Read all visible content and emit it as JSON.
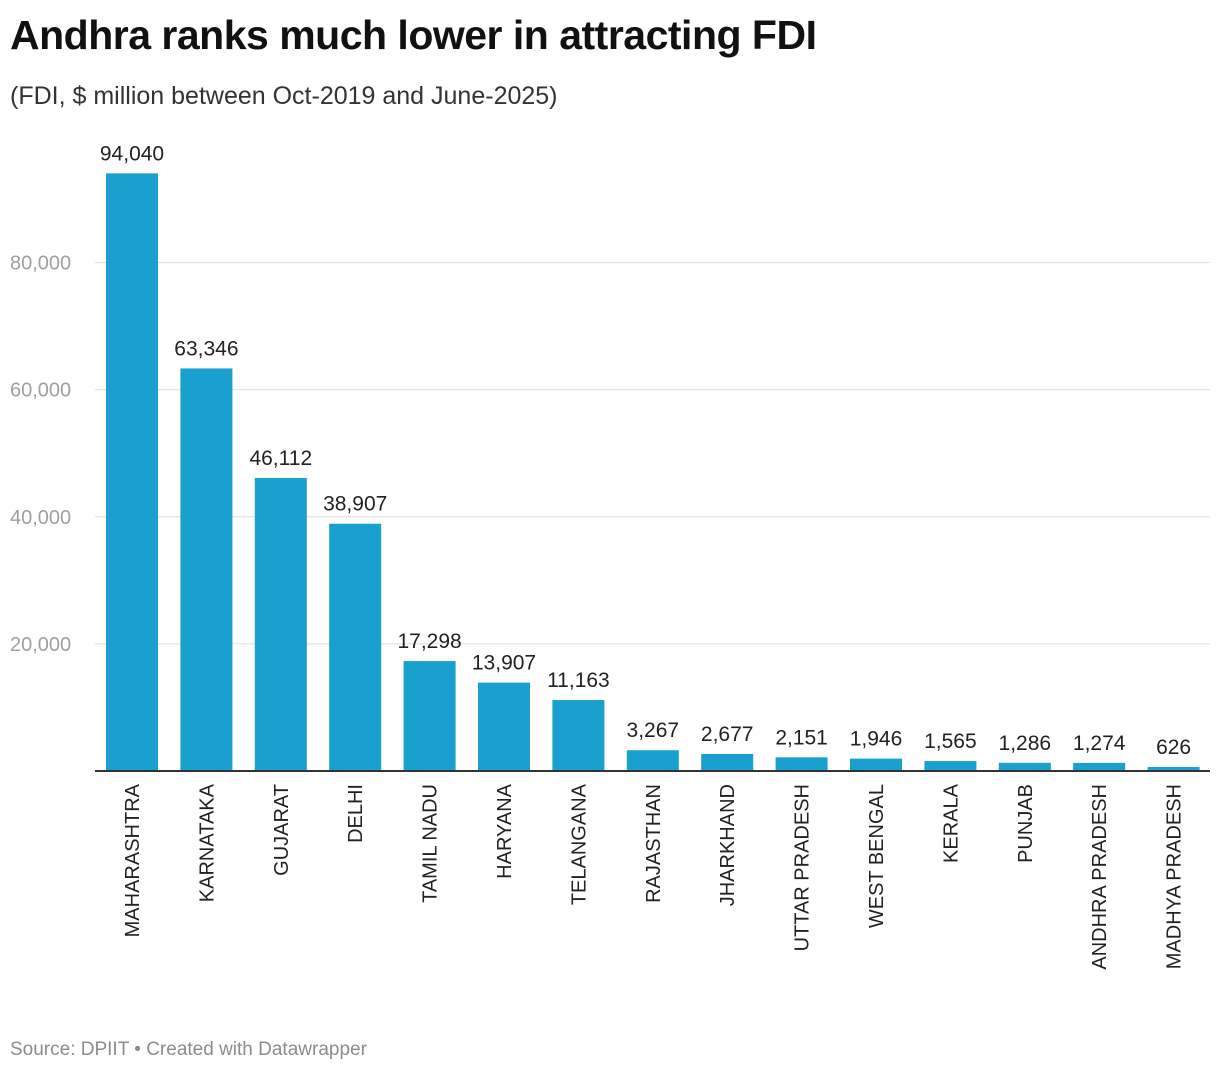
{
  "header": {
    "title": "Andhra ranks much lower in attracting FDI",
    "subtitle": "(FDI, $ million between Oct-2019 and June-2025)"
  },
  "footer": {
    "source": "Source: DPIIT",
    "separator": "•",
    "credit": "Created with Datawrapper"
  },
  "chart_data": {
    "type": "bar",
    "title": "Andhra ranks much lower in attracting FDI",
    "subtitle": "(FDI, $ million between Oct-2019 and June-2025)",
    "xlabel": "",
    "ylabel": "",
    "ylim": [
      0,
      100000
    ],
    "yticks": [
      20000,
      40000,
      60000,
      80000
    ],
    "ytick_labels": [
      "20,000",
      "40,000",
      "60,000",
      "80,000"
    ],
    "grid": true,
    "bar_color": "#1aa0cf",
    "categories": [
      "MAHARASHTRA",
      "KARNATAKA",
      "GUJARAT",
      "DELHI",
      "TAMIL NADU",
      "HARYANA",
      "TELANGANA",
      "RAJASTHAN",
      "JHARKHAND",
      "UTTAR PRADESH",
      "WEST BENGAL",
      "KERALA",
      "PUNJAB",
      "ANDHRA PRADESH",
      "MADHYA PRADESH"
    ],
    "values": [
      94040,
      63346,
      46112,
      38907,
      17298,
      13907,
      11163,
      3267,
      2677,
      2151,
      1946,
      1565,
      1286,
      1274,
      626
    ],
    "value_labels": [
      "94,040",
      "63,346",
      "46,112",
      "38,907",
      "17,298",
      "13,907",
      "11,163",
      "3,267",
      "2,677",
      "2,151",
      "1,946",
      "1,565",
      "1,286",
      "1,274",
      "626"
    ]
  }
}
